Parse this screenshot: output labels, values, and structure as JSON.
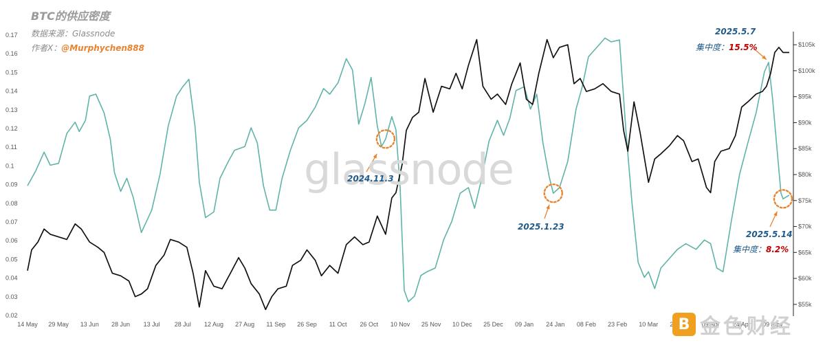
{
  "header": {
    "title": "BTC的供应密度",
    "source": "数据来源：Glassnode",
    "author_prefix": "作者X：",
    "author_handle": "@Murphychen888"
  },
  "watermark": "glassnode",
  "logo": {
    "mark": "B",
    "text": "金色财经"
  },
  "annotations": {
    "a1": {
      "date": "2025.5.7",
      "label": "集中度：",
      "value": "15.5%"
    },
    "a2": {
      "date": "2024.11.3"
    },
    "a3": {
      "date": "2025.1.23"
    },
    "a4": {
      "date": "2025.5.14",
      "label": "集中度：",
      "value": "8.2%"
    }
  },
  "colors": {
    "density": "#5fb3a8",
    "price": "#111111",
    "annotation_arrow": "#e8842f",
    "date_text": "#1f5a8a",
    "value_text": "#c00000"
  },
  "chart_data": {
    "type": "line",
    "x_ticks": [
      "14 May",
      "29 May",
      "13 Jun",
      "28 Jun",
      "13 Jul",
      "28 Jul",
      "12 Aug",
      "27 Aug",
      "11 Sep",
      "26 Sep",
      "11 Oct",
      "26 Oct",
      "10 Nov",
      "25 Nov",
      "10 Dec",
      "25 Dec",
      "09 Jan",
      "24 Jan",
      "08 Feb",
      "23 Feb",
      "10 Mar",
      "25 Mar",
      "09 Apr",
      "24 Apr",
      "09 May"
    ],
    "y_left": {
      "min": 0.02,
      "max": 0.17,
      "ticks": [
        "0.02",
        "0.03",
        "0.04",
        "0.05",
        "0.06",
        "0.07",
        "0.08",
        "0.09",
        "0.1",
        "0.11",
        "0.12",
        "0.13",
        "0.14",
        "0.15",
        "0.16",
        "0.17"
      ]
    },
    "y_right": {
      "min": 53000,
      "max": 107000,
      "ticks": [
        "$55k",
        "$60k",
        "$65k",
        "$70k",
        "$75k",
        "$80k",
        "$85k",
        "$90k",
        "$95k",
        "$100k",
        "$105k"
      ]
    },
    "grid": false,
    "series": [
      {
        "axis": "left",
        "points": [
          [
            "14 May",
            0.089
          ],
          [
            "18 May",
            0.097
          ],
          [
            "22 May",
            0.107
          ],
          [
            "25 May",
            0.1
          ],
          [
            "29 May",
            0.101
          ],
          [
            "02 Jun",
            0.117
          ],
          [
            "06 Jun",
            0.123
          ],
          [
            "08 Jun",
            0.118
          ],
          [
            "11 Jun",
            0.124
          ],
          [
            "13 Jun",
            0.137
          ],
          [
            "16 Jun",
            0.138
          ],
          [
            "20 Jun",
            0.128
          ],
          [
            "23 Jun",
            0.114
          ],
          [
            "25 Jun",
            0.096
          ],
          [
            "28 Jun",
            0.086
          ],
          [
            "01 Jul",
            0.093
          ],
          [
            "04 Jul",
            0.083
          ],
          [
            "08 Jul",
            0.064
          ],
          [
            "13 Jul",
            0.076
          ],
          [
            "17 Jul",
            0.095
          ],
          [
            "21 Jul",
            0.121
          ],
          [
            "25 Jul",
            0.137
          ],
          [
            "28 Jul",
            0.142
          ],
          [
            "31 Jul",
            0.146
          ],
          [
            "03 Aug",
            0.12
          ],
          [
            "05 Aug",
            0.091
          ],
          [
            "08 Aug",
            0.072
          ],
          [
            "12 Aug",
            0.075
          ],
          [
            "15 Aug",
            0.093
          ],
          [
            "19 Aug",
            0.102
          ],
          [
            "22 Aug",
            0.108
          ],
          [
            "27 Aug",
            0.11
          ],
          [
            "30 Aug",
            0.12
          ],
          [
            "02 Sep",
            0.112
          ],
          [
            "05 Sep",
            0.089
          ],
          [
            "08 Sep",
            0.076
          ],
          [
            "11 Sep",
            0.076
          ],
          [
            "14 Sep",
            0.093
          ],
          [
            "18 Sep",
            0.108
          ],
          [
            "22 Sep",
            0.12
          ],
          [
            "26 Sep",
            0.124
          ],
          [
            "30 Sep",
            0.131
          ],
          [
            "04 Oct",
            0.141
          ],
          [
            "07 Oct",
            0.138
          ],
          [
            "11 Oct",
            0.144
          ],
          [
            "15 Oct",
            0.157
          ],
          [
            "18 Oct",
            0.151
          ],
          [
            "21 Oct",
            0.122
          ],
          [
            "24 Oct",
            0.133
          ],
          [
            "27 Oct",
            0.147
          ],
          [
            "30 Oct",
            0.121
          ],
          [
            "01 Nov",
            0.11
          ],
          [
            "03 Nov",
            0.114
          ],
          [
            "06 Nov",
            0.126
          ],
          [
            "08 Nov",
            0.119
          ],
          [
            "10 Nov",
            0.088
          ],
          [
            "12 Nov",
            0.033
          ],
          [
            "14 Nov",
            0.027
          ],
          [
            "17 Nov",
            0.03
          ],
          [
            "20 Nov",
            0.041
          ],
          [
            "23 Nov",
            0.043
          ],
          [
            "27 Nov",
            0.045
          ],
          [
            "01 Dec",
            0.06
          ],
          [
            "05 Dec",
            0.07
          ],
          [
            "09 Dec",
            0.085
          ],
          [
            "13 Dec",
            0.088
          ],
          [
            "16 Dec",
            0.077
          ],
          [
            "19 Dec",
            0.091
          ],
          [
            "23 Dec",
            0.113
          ],
          [
            "27 Dec",
            0.124
          ],
          [
            "30 Dec",
            0.116
          ],
          [
            "02 Jan",
            0.125
          ],
          [
            "05 Jan",
            0.14
          ],
          [
            "09 Jan",
            0.142
          ],
          [
            "12 Jan",
            0.13
          ],
          [
            "15 Jan",
            0.138
          ],
          [
            "18 Jan",
            0.112
          ],
          [
            "21 Jan",
            0.094
          ],
          [
            "23 Jan",
            0.085
          ],
          [
            "26 Jan",
            0.088
          ],
          [
            "30 Jan",
            0.102
          ],
          [
            "03 Feb",
            0.13
          ],
          [
            "06 Feb",
            0.142
          ],
          [
            "09 Feb",
            0.158
          ],
          [
            "13 Feb",
            0.163
          ],
          [
            "17 Feb",
            0.168
          ],
          [
            "20 Feb",
            0.166
          ],
          [
            "24 Feb",
            0.167
          ],
          [
            "27 Feb",
            0.12
          ],
          [
            "02 Mar",
            0.08
          ],
          [
            "05 Mar",
            0.048
          ],
          [
            "08 Mar",
            0.04
          ],
          [
            "10 Mar",
            0.043
          ],
          [
            "13 Mar",
            0.034
          ],
          [
            "16 Mar",
            0.045
          ],
          [
            "20 Mar",
            0.05
          ],
          [
            "24 Mar",
            0.055
          ],
          [
            "28 Mar",
            0.058
          ],
          [
            "02 Apr",
            0.055
          ],
          [
            "06 Apr",
            0.06
          ],
          [
            "09 Apr",
            0.058
          ],
          [
            "12 Apr",
            0.045
          ],
          [
            "15 Apr",
            0.043
          ],
          [
            "19 Apr",
            0.07
          ],
          [
            "23 Apr",
            0.095
          ],
          [
            "27 Apr",
            0.112
          ],
          [
            "01 May",
            0.128
          ],
          [
            "05 May",
            0.15
          ],
          [
            "07 May",
            0.155
          ],
          [
            "09 May",
            0.135
          ],
          [
            "11 May",
            0.11
          ],
          [
            "13 May",
            0.085
          ],
          [
            "14 May",
            0.082
          ],
          [
            "17 May",
            0.084
          ]
        ]
      },
      {
        "axis": "right",
        "points": [
          [
            "14 May",
            61500
          ],
          [
            "16 May",
            65500
          ],
          [
            "19 May",
            67000
          ],
          [
            "22 May",
            69500
          ],
          [
            "25 May",
            68500
          ],
          [
            "29 May",
            68000
          ],
          [
            "02 Jun",
            67500
          ],
          [
            "06 Jun",
            70500
          ],
          [
            "09 Jun",
            69500
          ],
          [
            "13 Jun",
            67000
          ],
          [
            "17 Jun",
            66000
          ],
          [
            "20 Jun",
            65000
          ],
          [
            "24 Jun",
            61000
          ],
          [
            "28 Jun",
            60500
          ],
          [
            "02 Jul",
            59500
          ],
          [
            "05 Jul",
            56500
          ],
          [
            "08 Jul",
            57000
          ],
          [
            "11 Jul",
            58000
          ],
          [
            "15 Jul",
            62500
          ],
          [
            "19 Jul",
            64500
          ],
          [
            "22 Jul",
            67500
          ],
          [
            "26 Jul",
            67000
          ],
          [
            "30 Jul",
            66000
          ],
          [
            "02 Aug",
            61000
          ],
          [
            "05 Aug",
            54500
          ],
          [
            "08 Aug",
            61500
          ],
          [
            "12 Aug",
            58500
          ],
          [
            "16 Aug",
            58000
          ],
          [
            "20 Aug",
            61000
          ],
          [
            "24 Aug",
            64000
          ],
          [
            "27 Aug",
            62000
          ],
          [
            "30 Aug",
            59000
          ],
          [
            "03 Sep",
            57000
          ],
          [
            "06 Sep",
            54000
          ],
          [
            "09 Sep",
            56500
          ],
          [
            "12 Sep",
            58000
          ],
          [
            "16 Sep",
            58500
          ],
          [
            "19 Sep",
            62500
          ],
          [
            "23 Sep",
            63500
          ],
          [
            "26 Sep",
            65500
          ],
          [
            "30 Sep",
            63500
          ],
          [
            "03 Oct",
            60500
          ],
          [
            "07 Oct",
            62500
          ],
          [
            "11 Oct",
            61000
          ],
          [
            "15 Oct",
            66500
          ],
          [
            "19 Oct",
            68000
          ],
          [
            "23 Oct",
            66500
          ],
          [
            "26 Oct",
            67000
          ],
          [
            "30 Oct",
            72000
          ],
          [
            "03 Nov",
            68500
          ],
          [
            "06 Nov",
            75500
          ],
          [
            "08 Nov",
            76500
          ],
          [
            "11 Nov",
            82000
          ],
          [
            "13 Nov",
            88500
          ],
          [
            "16 Nov",
            91000
          ],
          [
            "19 Nov",
            92000
          ],
          [
            "22 Nov",
            98500
          ],
          [
            "26 Nov",
            92000
          ],
          [
            "30 Nov",
            97000
          ],
          [
            "04 Dec",
            96500
          ],
          [
            "07 Dec",
            99500
          ],
          [
            "10 Dec",
            96500
          ],
          [
            "13 Dec",
            101000
          ],
          [
            "17 Dec",
            106000
          ],
          [
            "20 Dec",
            97000
          ],
          [
            "24 Dec",
            94500
          ],
          [
            "27 Dec",
            95500
          ],
          [
            "31 Dec",
            93500
          ],
          [
            "03 Jan",
            97500
          ],
          [
            "07 Jan",
            101500
          ],
          [
            "10 Jan",
            94500
          ],
          [
            "13 Jan",
            93500
          ],
          [
            "16 Jan",
            99500
          ],
          [
            "20 Jan",
            106000
          ],
          [
            "23 Jan",
            102500
          ],
          [
            "26 Jan",
            104500
          ],
          [
            "30 Jan",
            105000
          ],
          [
            "02 Feb",
            97500
          ],
          [
            "05 Feb",
            98500
          ],
          [
            "08 Feb",
            96000
          ],
          [
            "12 Feb",
            96500
          ],
          [
            "16 Feb",
            97500
          ],
          [
            "20 Feb",
            96000
          ],
          [
            "24 Feb",
            95500
          ],
          [
            "26 Feb",
            88500
          ],
          [
            "28 Feb",
            84500
          ],
          [
            "03 Mar",
            94000
          ],
          [
            "06 Mar",
            88000
          ],
          [
            "10 Mar",
            78500
          ],
          [
            "13 Mar",
            83000
          ],
          [
            "16 Mar",
            84000
          ],
          [
            "20 Mar",
            85500
          ],
          [
            "24 Mar",
            87500
          ],
          [
            "27 Mar",
            86500
          ],
          [
            "31 Mar",
            82500
          ],
          [
            "03 Apr",
            83000
          ],
          [
            "07 Apr",
            77500
          ],
          [
            "09 Apr",
            76500
          ],
          [
            "11 Apr",
            82500
          ],
          [
            "14 Apr",
            84500
          ],
          [
            "18 Apr",
            85000
          ],
          [
            "21 Apr",
            87500
          ],
          [
            "24 Apr",
            93000
          ],
          [
            "27 Apr",
            94000
          ],
          [
            "01 May",
            95500
          ],
          [
            "04 May",
            96000
          ],
          [
            "06 May",
            97000
          ],
          [
            "08 May",
            99500
          ],
          [
            "10 May",
            103500
          ],
          [
            "12 May",
            104500
          ],
          [
            "14 May",
            103500
          ],
          [
            "17 May",
            103500
          ]
        ]
      }
    ]
  }
}
